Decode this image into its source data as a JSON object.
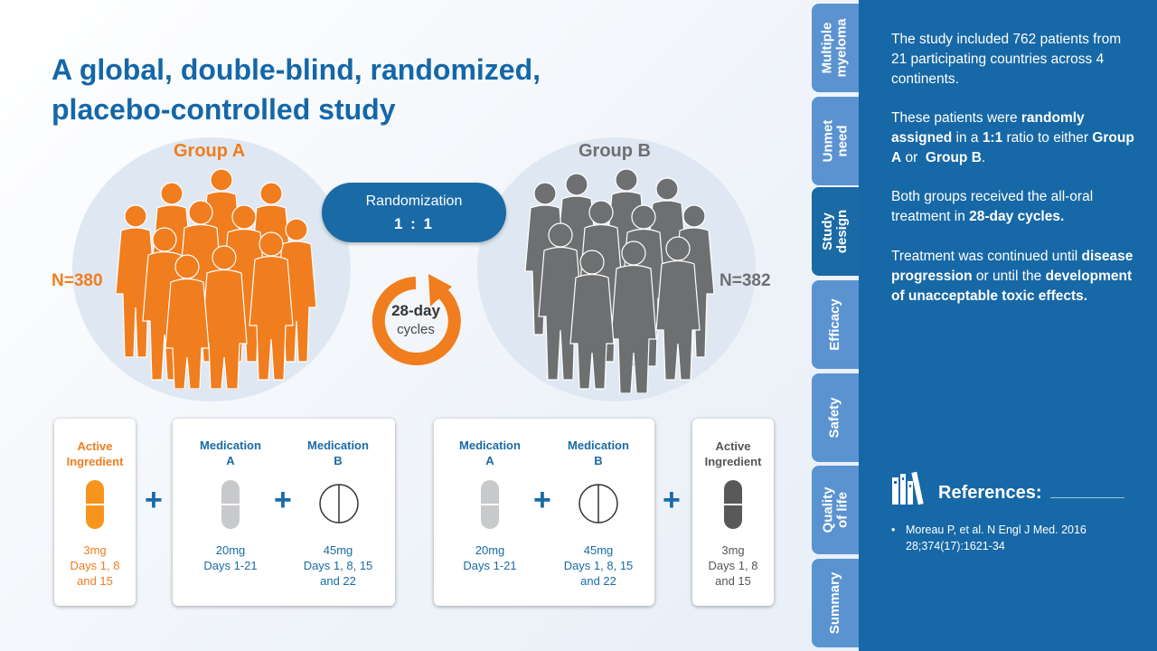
{
  "title": {
    "line1": "A global, double-blind, randomized,",
    "line2": "placebo-controlled study"
  },
  "group_a": {
    "label": "Group A",
    "n": "N=380",
    "color": "#f07d1e"
  },
  "group_b": {
    "label": "Group B",
    "n": "N=382",
    "color": "#6d6f71"
  },
  "randomization": {
    "label": "Randomization",
    "ratio": "1 : 1"
  },
  "cycle": {
    "line1": "28-day",
    "line2": "cycles"
  },
  "group_a_regimen": {
    "active": {
      "name": "Active Ingredient",
      "dose_lines": [
        "3mg",
        "Days 1, 8",
        "and 15"
      ]
    },
    "med_a": {
      "name_lines": [
        "Medication",
        "A"
      ],
      "dose_lines": [
        "20mg",
        "Days 1-21"
      ]
    },
    "med_b": {
      "name_lines": [
        "Medication",
        "B"
      ],
      "dose_lines": [
        "45mg",
        "Days 1, 8, 15",
        "and 22"
      ]
    }
  },
  "group_b_regimen": {
    "med_a": {
      "name_lines": [
        "Medication",
        "A"
      ],
      "dose_lines": [
        "20mg",
        "Days 1-21"
      ]
    },
    "med_b": {
      "name_lines": [
        "Medication",
        "B"
      ],
      "dose_lines": [
        "45mg",
        "Days 1, 8, 15",
        "and 22"
      ]
    },
    "placebo": {
      "name": "Active Ingredient",
      "dose_lines": [
        "3mg",
        "Days 1, 8",
        "and 15"
      ]
    }
  },
  "plus": "+",
  "tabs": [
    {
      "lines": [
        "Multiple",
        "myeloma"
      ],
      "active": false
    },
    {
      "lines": [
        "Unmet",
        "need"
      ],
      "active": false
    },
    {
      "lines": [
        "Study",
        "design"
      ],
      "active": true
    },
    {
      "lines": [
        "Efficacy"
      ],
      "active": false
    },
    {
      "lines": [
        "Safety"
      ],
      "active": false
    },
    {
      "lines": [
        "Quality",
        "of life"
      ],
      "active": false
    },
    {
      "lines": [
        "Summary"
      ],
      "active": false
    }
  ],
  "panel": {
    "p1": "The study included 762 patients from 21 participating countries across 4 continents.",
    "p2": {
      "a": "These patients were ",
      "b": "randomly assigned",
      "c": " in a ",
      "d": "1:1",
      "e": " ratio to either ",
      "f": "Group A",
      "g": " or  ",
      "h": "Group B",
      "i": "."
    },
    "p3": {
      "a": "Both groups received the all-oral treatment in ",
      "b": "28-day cycles."
    },
    "p4": {
      "a": "Treatment was continued until ",
      "b": "disease progression",
      "c": " or until the ",
      "d": "development of unacceptable toxic effects."
    },
    "references_title": "References:",
    "references": [
      "Moreau P, et al. N Engl J Med. 2016 28;374(17):1621-34"
    ]
  },
  "icons": [
    "people-group-icon",
    "cycle-arrow-icon",
    "capsule-icon",
    "tablet-icon",
    "books-icon"
  ],
  "colors": {
    "accent": "#1a6aa6",
    "orange": "#f07d1e",
    "grey": "#6d6f71",
    "tab": "#5b93d1",
    "panel": "#1768a6"
  }
}
